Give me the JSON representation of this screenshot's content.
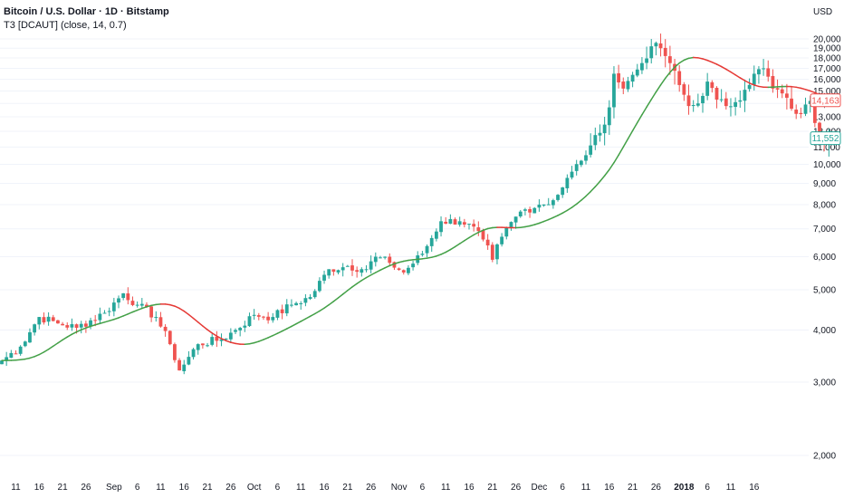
{
  "header": {
    "title": "Bitcoin / U.S. Dollar · 1D · Bitstamp",
    "indicator": "T3 [DCAUT] (close, 14, 0.7)",
    "currency": "USD"
  },
  "colors": {
    "up": "#26a69a",
    "down": "#ef5350",
    "t3_up": "#43a047",
    "t3_down": "#e53935",
    "grid": "#f0f3fa"
  },
  "chart_data": {
    "type": "candlestick",
    "start_date": "2017-08-08",
    "y_axis": {
      "scale": "log",
      "ticks": [
        "2,000",
        "3,000",
        "4,000",
        "5,000",
        "6,000",
        "7,000",
        "8,000",
        "9,000",
        "10,000",
        "11,000",
        "12,000",
        "13,000",
        "14,000",
        "15,000",
        "16,000",
        "17,000",
        "18,000",
        "19,000",
        "20,000"
      ]
    },
    "x_ticks": [
      {
        "label": "11",
        "date": "2017-08-11"
      },
      {
        "label": "16",
        "date": "2017-08-16"
      },
      {
        "label": "21",
        "date": "2017-08-21"
      },
      {
        "label": "26",
        "date": "2017-08-26"
      },
      {
        "label": "Sep",
        "date": "2017-09-01",
        "bold": false
      },
      {
        "label": "6",
        "date": "2017-09-06"
      },
      {
        "label": "11",
        "date": "2017-09-11"
      },
      {
        "label": "16",
        "date": "2017-09-16"
      },
      {
        "label": "21",
        "date": "2017-09-21"
      },
      {
        "label": "26",
        "date": "2017-09-26"
      },
      {
        "label": "Oct",
        "date": "2017-10-01"
      },
      {
        "label": "6",
        "date": "2017-10-06"
      },
      {
        "label": "11",
        "date": "2017-10-11"
      },
      {
        "label": "16",
        "date": "2017-10-16"
      },
      {
        "label": "21",
        "date": "2017-10-21"
      },
      {
        "label": "26",
        "date": "2017-10-26"
      },
      {
        "label": "Nov",
        "date": "2017-11-01"
      },
      {
        "label": "6",
        "date": "2017-11-06"
      },
      {
        "label": "11",
        "date": "2017-11-11"
      },
      {
        "label": "16",
        "date": "2017-11-16"
      },
      {
        "label": "21",
        "date": "2017-11-21"
      },
      {
        "label": "26",
        "date": "2017-11-26"
      },
      {
        "label": "Dec",
        "date": "2017-12-01"
      },
      {
        "label": "6",
        "date": "2017-12-06"
      },
      {
        "label": "11",
        "date": "2017-12-11"
      },
      {
        "label": "16",
        "date": "2017-12-16"
      },
      {
        "label": "21",
        "date": "2017-12-21"
      },
      {
        "label": "26",
        "date": "2017-12-26"
      },
      {
        "label": "2018",
        "date": "2018-01-01",
        "bold": true
      },
      {
        "label": "6",
        "date": "2018-01-06"
      },
      {
        "label": "11",
        "date": "2018-01-11"
      },
      {
        "label": "16",
        "date": "2018-01-16"
      }
    ],
    "close_keyframes": [
      [
        0,
        3380
      ],
      [
        4,
        3650
      ],
      [
        8,
        4300
      ],
      [
        12,
        4150
      ],
      [
        16,
        4050
      ],
      [
        22,
        4400
      ],
      [
        26,
        4900
      ],
      [
        29,
        4600
      ],
      [
        33,
        4300
      ],
      [
        36,
        3700
      ],
      [
        38,
        3200
      ],
      [
        42,
        3700
      ],
      [
        47,
        3800
      ],
      [
        50,
        4000
      ],
      [
        54,
        4350
      ],
      [
        58,
        4300
      ],
      [
        62,
        4600
      ],
      [
        66,
        4800
      ],
      [
        70,
        5600
      ],
      [
        74,
        5700
      ],
      [
        78,
        5600
      ],
      [
        80,
        6000
      ],
      [
        83,
        5800
      ],
      [
        86,
        5500
      ],
      [
        90,
        6100
      ],
      [
        94,
        7300
      ],
      [
        98,
        7300
      ],
      [
        100,
        7200
      ],
      [
        103,
        6600
      ],
      [
        105,
        5900
      ],
      [
        107,
        6700
      ],
      [
        111,
        7700
      ],
      [
        115,
        8000
      ],
      [
        118,
        8200
      ],
      [
        120,
        8800
      ],
      [
        122,
        9600
      ],
      [
        124,
        10200
      ],
      [
        126,
        11100
      ],
      [
        128,
        11900
      ],
      [
        130,
        13700
      ],
      [
        131,
        16500
      ],
      [
        133,
        15200
      ],
      [
        135,
        16400
      ],
      [
        137,
        17500
      ],
      [
        139,
        19200
      ],
      [
        141,
        19000
      ],
      [
        143,
        17500
      ],
      [
        145,
        15500
      ],
      [
        147,
        13800
      ],
      [
        149,
        14000
      ],
      [
        151,
        15800
      ],
      [
        153,
        14300
      ],
      [
        155,
        13800
      ],
      [
        157,
        14100
      ],
      [
        159,
        15100
      ],
      [
        161,
        16500
      ],
      [
        163,
        17000
      ],
      [
        165,
        15200
      ],
      [
        167,
        14800
      ],
      [
        169,
        13600
      ],
      [
        171,
        13200
      ],
      [
        173,
        14200
      ],
      [
        175,
        11500
      ],
      [
        177,
        11550
      ]
    ],
    "last_values": {
      "t3": "14,163",
      "price": "11,552"
    },
    "series": [
      {
        "name": "T3 [DCAUT] (close, 14, 0.7)"
      }
    ]
  }
}
